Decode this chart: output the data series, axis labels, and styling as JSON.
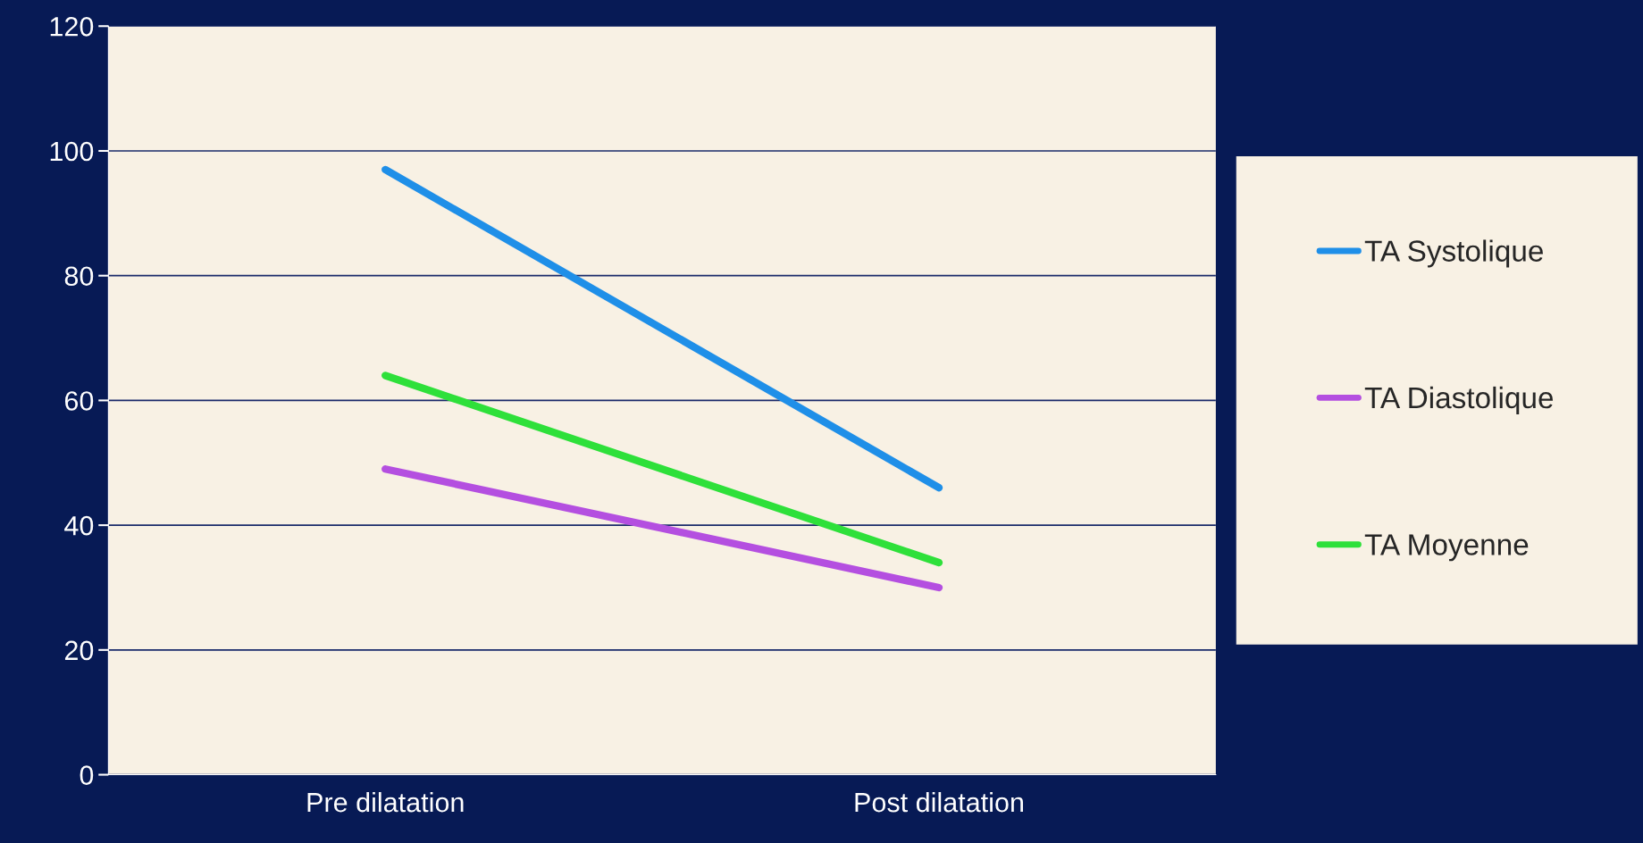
{
  "chart_data": {
    "type": "line",
    "categories": [
      "Pre dilatation",
      "Post dilatation"
    ],
    "series": [
      {
        "name": "TA Systolique",
        "color": "#1f8fe8",
        "values": [
          97,
          46
        ]
      },
      {
        "name": "TA Diastolique",
        "color": "#b44fe0",
        "values": [
          49,
          30
        ]
      },
      {
        "name": "TA Moyenne",
        "color": "#2ee03a",
        "values": [
          64,
          34
        ]
      }
    ],
    "ylim": [
      0,
      120
    ],
    "yticks": [
      0,
      20,
      40,
      60,
      80,
      100,
      120
    ],
    "grid": "y",
    "legend": "right",
    "marker": "none",
    "line_style": "solid"
  }
}
